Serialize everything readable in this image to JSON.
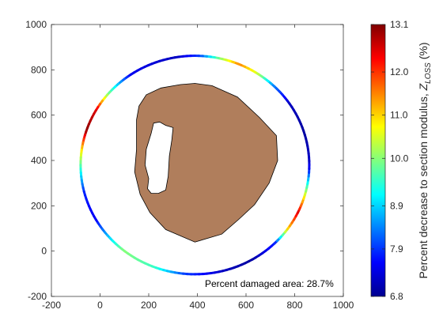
{
  "chart_data": {
    "type": "heatmap",
    "title": "",
    "xlabel": "",
    "ylabel": "",
    "xlim": [
      -200,
      1000
    ],
    "ylim": [
      -200,
      1000
    ],
    "xticks": [
      -200,
      0,
      200,
      400,
      600,
      800,
      1000
    ],
    "yticks": [
      -200,
      0,
      200,
      400,
      600,
      800,
      1000
    ],
    "grid": false,
    "annotation": "Percent damaged area: 28.7%",
    "section_shape": {
      "fill_color": "#b07e5c",
      "outer_boundary": [
        [
          390,
          740
        ],
        [
          330,
          735
        ],
        [
          250,
          720
        ],
        [
          190,
          690
        ],
        [
          160,
          640
        ],
        [
          150,
          580
        ],
        [
          150,
          450
        ],
        [
          142,
          350
        ],
        [
          165,
          250
        ],
        [
          205,
          170
        ],
        [
          270,
          95
        ],
        [
          390,
          40
        ],
        [
          500,
          75
        ],
        [
          570,
          140
        ],
        [
          635,
          205
        ],
        [
          695,
          300
        ],
        [
          730,
          400
        ],
        [
          725,
          510
        ],
        [
          655,
          590
        ],
        [
          565,
          680
        ],
        [
          460,
          730
        ]
      ],
      "damaged_void_boundary": [
        [
          220,
          565
        ],
        [
          245,
          570
        ],
        [
          270,
          555
        ],
        [
          300,
          545
        ],
        [
          295,
          490
        ],
        [
          285,
          420
        ],
        [
          280,
          330
        ],
        [
          270,
          270
        ],
        [
          240,
          255
        ],
        [
          210,
          255
        ],
        [
          195,
          275
        ],
        [
          200,
          320
        ],
        [
          185,
          380
        ],
        [
          190,
          450
        ],
        [
          210,
          520
        ]
      ]
    },
    "ring": {
      "center": [
        390,
        380
      ],
      "radius_x": 470,
      "radius_y": 482,
      "coloring": "Percent decrease to section modulus by orientation",
      "color_stops": [
        {
          "angle": 0,
          "value": 7.3
        },
        {
          "angle": 18,
          "value": 7.0
        },
        {
          "angle": 35,
          "value": 7.2
        },
        {
          "angle": 48,
          "value": 8.5
        },
        {
          "angle": 58,
          "value": 10.5
        },
        {
          "angle": 68,
          "value": 11.5
        },
        {
          "angle": 78,
          "value": 10.0
        },
        {
          "angle": 88,
          "value": 8.0
        },
        {
          "angle": 100,
          "value": 7.2
        },
        {
          "angle": 125,
          "value": 7.5
        },
        {
          "angle": 140,
          "value": 10.0
        },
        {
          "angle": 150,
          "value": 12.5
        },
        {
          "angle": 162,
          "value": 13.0
        },
        {
          "angle": 172,
          "value": 11.0
        },
        {
          "angle": 182,
          "value": 9.5
        },
        {
          "angle": 195,
          "value": 7.8
        },
        {
          "angle": 210,
          "value": 7.5
        },
        {
          "angle": 232,
          "value": 10.0
        },
        {
          "angle": 250,
          "value": 9.5
        },
        {
          "angle": 265,
          "value": 8.0
        },
        {
          "angle": 285,
          "value": 7.2
        },
        {
          "angle": 300,
          "value": 7.0
        },
        {
          "angle": 315,
          "value": 7.8
        },
        {
          "angle": 325,
          "value": 11.0
        },
        {
          "angle": 335,
          "value": 12.5
        },
        {
          "angle": 345,
          "value": 10.5
        },
        {
          "angle": 360,
          "value": 7.3
        }
      ]
    },
    "colorbar": {
      "label_main": "Percent decrease to section modulus, ",
      "label_symbol": "Z",
      "label_sub": "LOSS",
      "label_unit": " (%)",
      "range": [
        6.8,
        13.1
      ],
      "ticks": [
        13.1,
        12.0,
        11.0,
        10.0,
        8.9,
        7.9,
        6.8
      ],
      "tick_labels": [
        "13.1",
        "12.0",
        "11.0",
        "10.0",
        "8.9",
        "7.9",
        "6.8"
      ],
      "colormap": "jet"
    }
  }
}
